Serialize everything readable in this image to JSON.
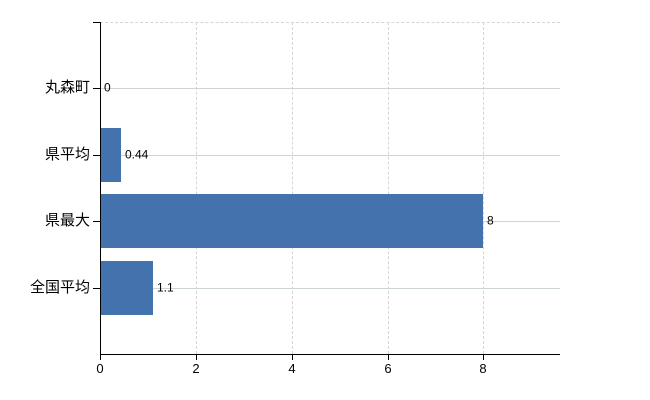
{
  "chart_data": {
    "type": "bar",
    "orientation": "horizontal",
    "title": "",
    "xlabel": "",
    "ylabel": "",
    "categories": [
      "丸森町",
      "県平均",
      "県最大",
      "全国平均"
    ],
    "values": [
      0,
      0.44,
      8,
      1.1
    ],
    "value_labels": [
      "0",
      "0.44",
      "8",
      "1.1"
    ],
    "xlim": [
      0,
      9.6
    ],
    "x_ticks": [
      0,
      2,
      4,
      6,
      8
    ],
    "x_tick_labels": [
      "0",
      "2",
      "4",
      "6",
      "8"
    ],
    "grid": true,
    "legend": false,
    "colors": {
      "bar": "#4472ac",
      "horizontal_gridline": "#ccd6cc",
      "vertical_gridline": "#d8d4d4",
      "axis": "#000000",
      "text": "#000000",
      "background": "#ffffff"
    }
  }
}
